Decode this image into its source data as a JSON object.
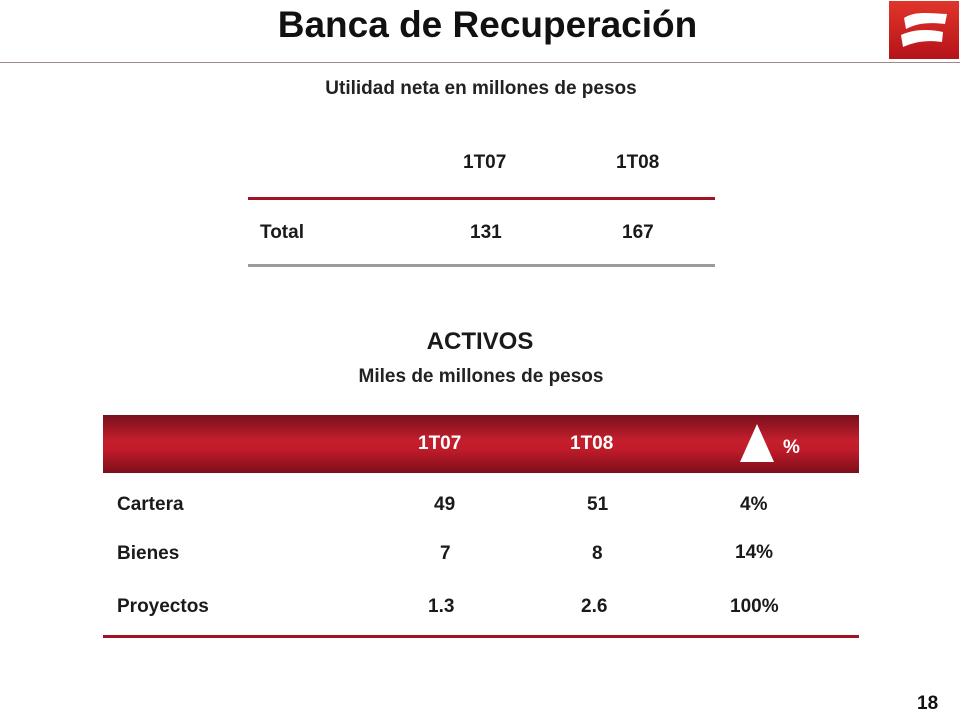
{
  "page": {
    "title": "Banca de Recuperación",
    "page_number": "18",
    "brand_color": "#c01b2a",
    "logo_icon": "banorte-logo-icon"
  },
  "utilidad": {
    "subtitle": "Utilidad neta en millones de pesos",
    "columns": [
      "1T07",
      "1T08"
    ],
    "row_label": "Total",
    "values": [
      "131",
      "167"
    ]
  },
  "activos": {
    "title": "ACTIVOS",
    "subtitle": "Miles de millones de pesos",
    "columns": [
      "1T07",
      "1T08",
      "%"
    ],
    "change_icon": "delta-triangle-icon",
    "rows": [
      {
        "label": "Cartera",
        "v1": "49",
        "v2": "51",
        "pct": "4%"
      },
      {
        "label": "Bienes",
        "v1": "7",
        "v2": "8",
        "pct": "14%"
      },
      {
        "label": "Proyectos",
        "v1": "1.3",
        "v2": "2.6",
        "pct": "100%"
      }
    ]
  }
}
